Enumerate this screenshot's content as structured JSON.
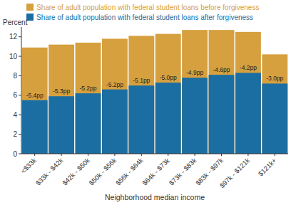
{
  "chart_data": {
    "type": "bar",
    "y_label": "Percent",
    "x_label": "Neighborhood median income",
    "categories": [
      "<$33k",
      "$33k - $42k",
      "$42k - $50k",
      "$50k - $56k",
      "$56k - $64k",
      "$64k - $73k",
      "$73k - $83k",
      "$83k - $97k",
      "$97k - $121k",
      "$121k+"
    ],
    "series": [
      {
        "name": "Share of adult population with federal student loans before forgiveness",
        "color": "#d6a03f",
        "values": [
          10.9,
          11.2,
          11.4,
          11.8,
          12.1,
          12.3,
          12.7,
          12.7,
          12.5,
          10.2
        ]
      },
      {
        "name": "Share of adult population with federal student loans after forgiveness",
        "color": "#1b6ea2",
        "values": [
          5.5,
          5.9,
          6.2,
          6.6,
          7.0,
          7.3,
          7.8,
          8.1,
          8.3,
          7.2
        ]
      }
    ],
    "annotations": [
      "-5.4pp",
      "-5.3pp",
      "-5.2pp",
      "-5.2pp",
      "-5.1pp",
      "-5.0pp",
      "-4.9pp",
      "-4.6pp",
      "-4.2pp",
      "-3.0pp"
    ],
    "stacked": false,
    "grid": false,
    "legend": "top",
    "ylim": [
      0,
      13
    ],
    "yticks": [
      0,
      2,
      4,
      6,
      8,
      10,
      12
    ]
  }
}
